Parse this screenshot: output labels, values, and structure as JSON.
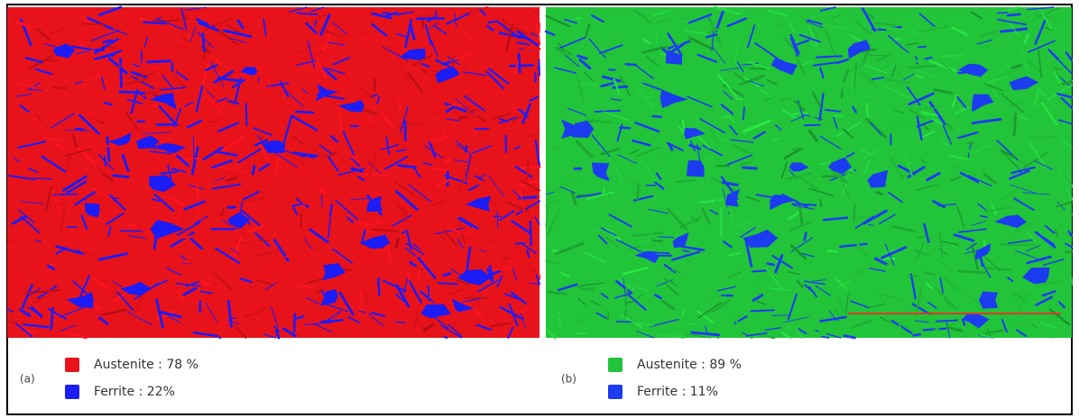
{
  "panels": [
    {
      "label": "(a)",
      "legend": [
        {
          "text": "Austenite : 78 %",
          "color": "#e8121b"
        },
        {
          "text": "Ferrite : 22%",
          "color": "#1c1cf5"
        }
      ]
    },
    {
      "label": "(b)",
      "legend": [
        {
          "text": "Austenite : 89 %",
          "color": "#22c43a"
        },
        {
          "text": "Ferrite : 11%",
          "color": "#1c3cf0"
        }
      ]
    }
  ]
}
